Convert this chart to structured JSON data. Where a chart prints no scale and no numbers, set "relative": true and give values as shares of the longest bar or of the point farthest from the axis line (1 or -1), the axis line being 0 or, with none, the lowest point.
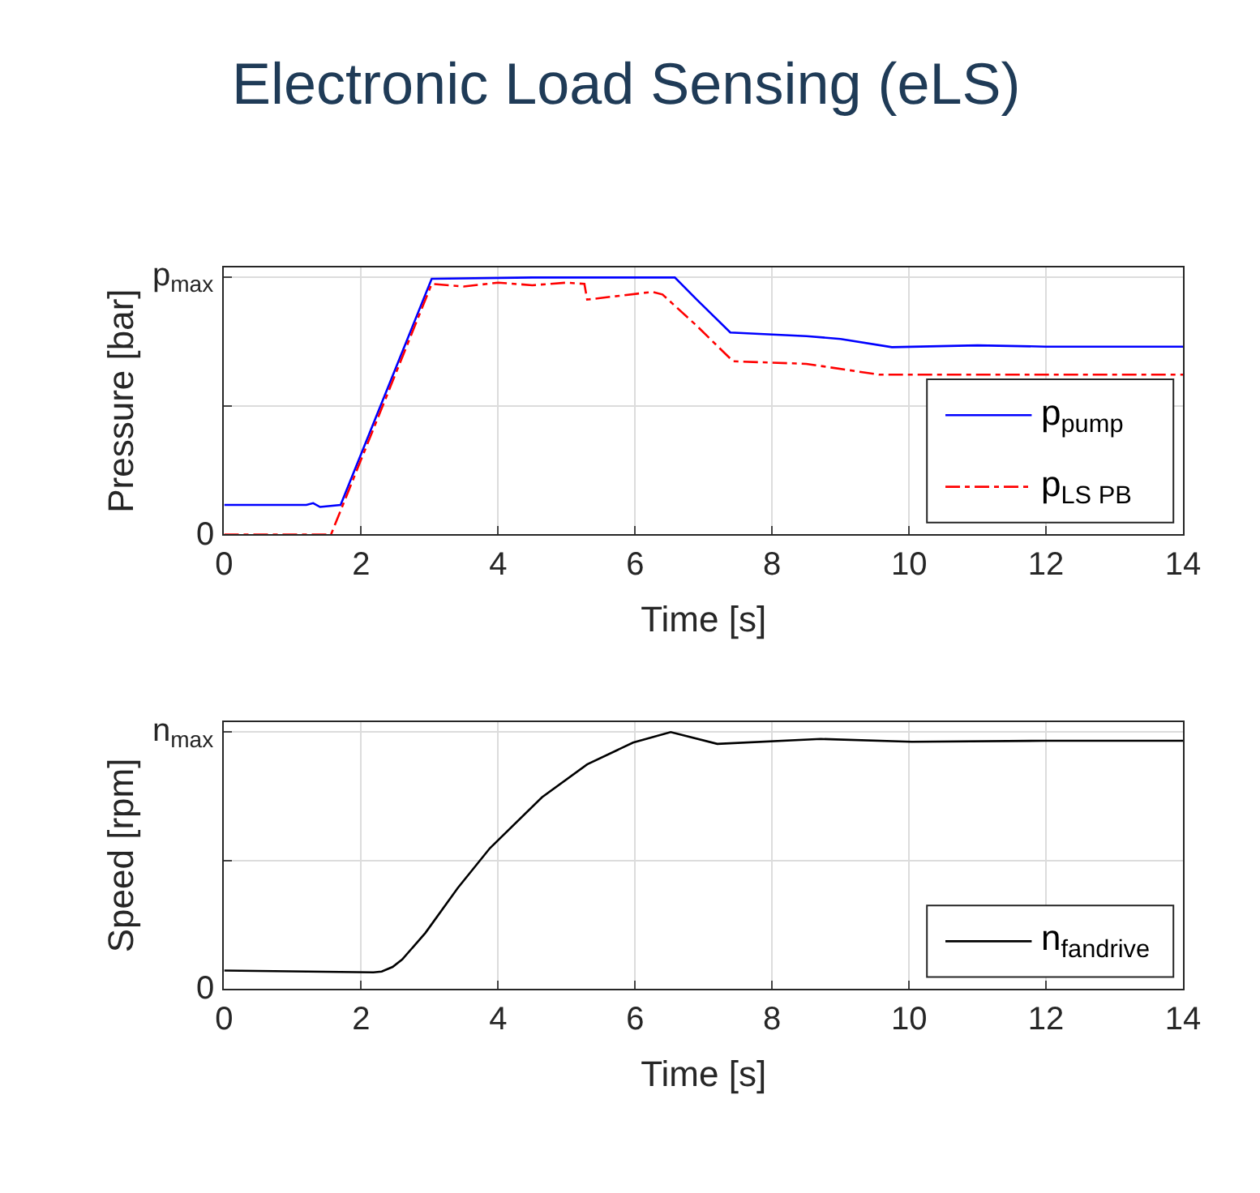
{
  "chart_data": [
    {
      "type": "line",
      "title": "Electronic Load Sensing (eLS)",
      "xlabel": "Time [s]",
      "ylabel": "Pressure [bar]",
      "xlim": [
        0,
        14
      ],
      "xticks": [
        0,
        2,
        4,
        6,
        8,
        10,
        12,
        14
      ],
      "relative": true,
      "annotations": [
        "0",
        "p$_{max}$"
      ],
      "grid": true,
      "legend": "bottom right",
      "series": [
        {
          "name": "p$_{pump}$",
          "color": "#0000ff",
          "line_style": "solid",
          "x": [
            0,
            1.2,
            1.3,
            1.4,
            1.7,
            3.03,
            4.5,
            6.58,
            6.9,
            7.39,
            8.5,
            9.0,
            9.75,
            11,
            12,
            14
          ],
          "values": [
            0.115,
            0.115,
            0.122,
            0.107,
            0.115,
            0.995,
            1,
            1,
            0.914,
            0.786,
            0.772,
            0.761,
            0.729,
            0.736,
            0.731,
            0.731
          ]
        },
        {
          "name": "p$_{LS PB}$",
          "color": "#ff0000",
          "line_style": "dashed",
          "x": [
            0,
            1.56,
            3.03,
            3.5,
            4.0,
            4.5,
            5.0,
            5.26,
            5.3,
            6.25,
            6.4,
            6.9,
            7.43,
            8.5,
            9.56,
            11,
            14
          ],
          "values": [
            0,
            0,
            0.975,
            0.965,
            0.98,
            0.97,
            0.98,
            0.975,
            0.914,
            0.944,
            0.934,
            0.812,
            0.674,
            0.664,
            0.622,
            0.622,
            0.622
          ]
        }
      ]
    },
    {
      "type": "line",
      "xlabel": "Time [s]",
      "ylabel": "Speed [rpm]",
      "xlim": [
        0,
        14
      ],
      "xticks": [
        0,
        2,
        4,
        6,
        8,
        10,
        12,
        14
      ],
      "relative": true,
      "annotations": [
        "0",
        "n$_{max}$"
      ],
      "grid": true,
      "legend": "bottom right",
      "series": [
        {
          "name": "n$_{fandrive}$",
          "color": "#000000",
          "line_style": "solid",
          "x": [
            0,
            2.18,
            2.3,
            2.46,
            2.6,
            2.94,
            3.41,
            3.88,
            4.64,
            5.3,
            5.97,
            6.52,
            7.2,
            8.71,
            10.04,
            12,
            14
          ],
          "values": [
            0.072,
            0.065,
            0.068,
            0.086,
            0.115,
            0.219,
            0.393,
            0.548,
            0.746,
            0.874,
            0.959,
            1,
            0.954,
            0.973,
            0.962,
            0.966,
            0.966
          ]
        }
      ]
    }
  ]
}
